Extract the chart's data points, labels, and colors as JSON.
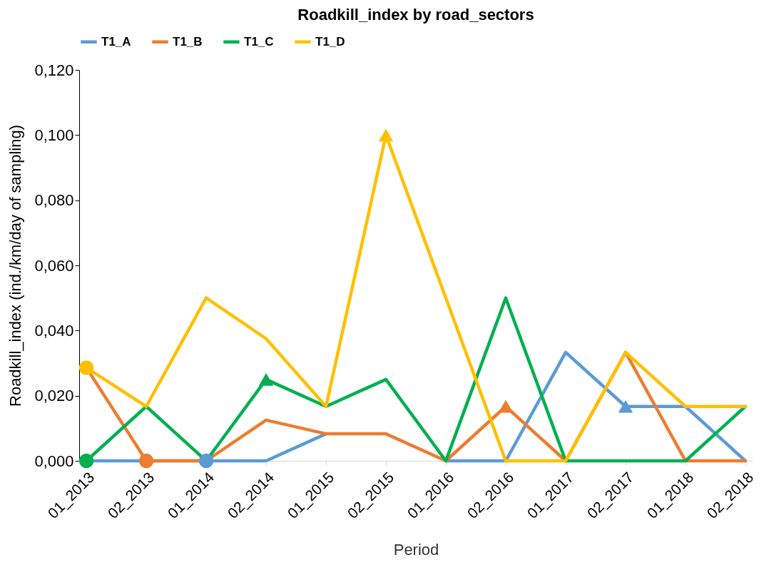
{
  "chart_data": {
    "type": "line",
    "title": "Roadkill_index by road_sectors",
    "xlabel": "Period",
    "ylabel": "Roadkill_index (ind./km/day of sampling)",
    "categories": [
      "01_2013",
      "02_2013",
      "01_2014",
      "02_2014",
      "01_2015",
      "02_2015",
      "01_2016",
      "02_2016",
      "01_2017",
      "02_2017",
      "01_2018",
      "02_2018"
    ],
    "series": [
      {
        "name": "T1_A",
        "color": "#5b9bd5",
        "values": [
          0,
          0,
          0,
          0,
          0.0083,
          null,
          0,
          0,
          0.0333,
          0.0167,
          0.0167,
          0
        ]
      },
      {
        "name": "T1_B",
        "color": "#ed7d31",
        "values": [
          0.0286,
          0,
          0,
          0.0125,
          0.0083,
          0.0083,
          0,
          0.0167,
          0,
          0.0333,
          0,
          0
        ]
      },
      {
        "name": "T1_C",
        "color": "#00b050",
        "values": [
          0,
          0.0167,
          0,
          0.025,
          0.0167,
          0.025,
          0,
          0.05,
          0,
          0,
          0,
          0.0167
        ]
      },
      {
        "name": "T1_D",
        "color": "#ffc000",
        "values": [
          0.0286,
          0.0167,
          0.05,
          0.0375,
          0.0167,
          0.1,
          0.05,
          0,
          0,
          0.0333,
          0.0167,
          0.0167
        ]
      },
      {
        "type": "scatter",
        "marker": "circle",
        "color": "#5b9bd5",
        "x": [
          "01_2014"
        ],
        "values": [
          0
        ]
      },
      {
        "type": "scatter",
        "marker": "triangle",
        "color": "#5b9bd5",
        "x": [
          "02_2017"
        ],
        "values": [
          0.0167
        ]
      },
      {
        "type": "scatter",
        "marker": "circle",
        "color": "#ed7d31",
        "x": [
          "02_2013"
        ],
        "values": [
          0
        ]
      },
      {
        "type": "scatter",
        "marker": "triangle",
        "color": "#ed7d31",
        "x": [
          "02_2016"
        ],
        "values": [
          0.0167
        ]
      },
      {
        "type": "scatter",
        "marker": "circle",
        "color": "#00b050",
        "x": [
          "01_2013"
        ],
        "values": [
          0
        ]
      },
      {
        "type": "scatter",
        "marker": "triangle",
        "color": "#00b050",
        "x": [
          "02_2014"
        ],
        "values": [
          0.025
        ]
      },
      {
        "type": "scatter",
        "marker": "circle",
        "color": "#ffc000",
        "x": [
          "01_2013"
        ],
        "values": [
          0.0286
        ]
      },
      {
        "type": "scatter",
        "marker": "triangle",
        "color": "#ffc000",
        "x": [
          "02_2015"
        ],
        "values": [
          0.1
        ]
      }
    ],
    "ylim": [
      0,
      0.12
    ],
    "yticks": [
      {
        "value": 0,
        "label": "0,000"
      },
      {
        "value": 0.02,
        "label": "0,020"
      },
      {
        "value": 0.04,
        "label": "0,040"
      },
      {
        "value": 0.06,
        "label": "0,060"
      },
      {
        "value": 0.08,
        "label": "0,080"
      },
      {
        "value": 0.1,
        "label": "0,100"
      },
      {
        "value": 0.12,
        "label": "0,120"
      }
    ],
    "grid": false,
    "legend": "top",
    "marker": "none",
    "line_style": "solid"
  }
}
